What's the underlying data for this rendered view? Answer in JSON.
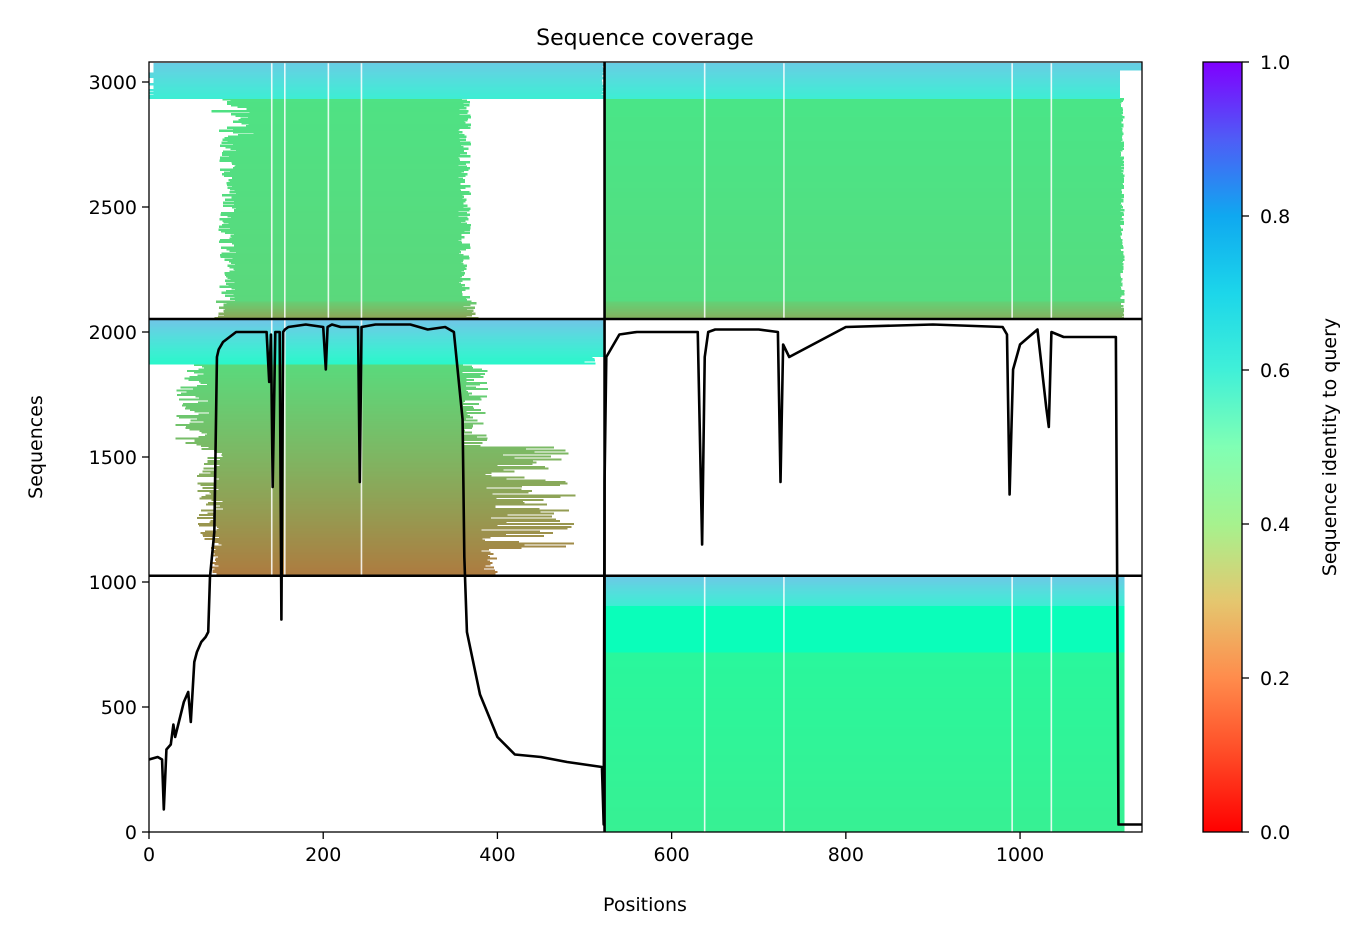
{
  "chart_data": {
    "type": "heatmap",
    "title": "Sequence coverage",
    "xlabel": "Positions",
    "ylabel": "Sequences",
    "xlim": [
      0,
      1140
    ],
    "ylim": [
      0,
      3080
    ],
    "x_ticks": [
      0,
      200,
      400,
      600,
      800,
      1000
    ],
    "y_ticks": [
      0,
      500,
      1000,
      1500,
      2000,
      2500,
      3000
    ],
    "grid": false,
    "domain_boundaries": {
      "x": [
        523
      ],
      "y": [
        1025,
        2052
      ]
    },
    "colorbar": {
      "label": "Sequence identity to query",
      "range": [
        0,
        1
      ],
      "ticks": [
        0.0,
        0.2,
        0.4,
        0.6,
        0.8,
        1.0
      ],
      "tick_labels": [
        "0.0",
        "0.2",
        "0.4",
        "0.6",
        "0.8",
        "1.0"
      ],
      "colormap": "rainbow_r"
    },
    "blocks": [
      {
        "x0": 0,
        "x1": 523,
        "y0": 2052,
        "y1": 3075,
        "pattern": "domain1_top"
      },
      {
        "x0": 523,
        "x1": 1140,
        "y0": 2052,
        "y1": 3075,
        "pattern": "domain2_top"
      },
      {
        "x0": 0,
        "x1": 523,
        "y0": 1025,
        "y1": 2052,
        "pattern": "domain1_mid"
      },
      {
        "x0": 523,
        "x1": 1120,
        "y0": 0,
        "y1": 1025,
        "pattern": "domain2_bottom"
      }
    ],
    "coverage": {
      "color": "#000000",
      "x": [
        0,
        10,
        15,
        17,
        20,
        25,
        28,
        30,
        35,
        40,
        45,
        48,
        52,
        55,
        60,
        65,
        68,
        70,
        75,
        78,
        80,
        85,
        100,
        120,
        135,
        138,
        140,
        142,
        145,
        150,
        152,
        154,
        156,
        160,
        180,
        200,
        203,
        205,
        210,
        220,
        240,
        242,
        244,
        260,
        300,
        320,
        340,
        350,
        360,
        362,
        365,
        380,
        400,
        420,
        450,
        480,
        500,
        520,
        522,
        523,
        525,
        540,
        560,
        600,
        630,
        635,
        638,
        642,
        650,
        700,
        722,
        725,
        728,
        735,
        800,
        900,
        980,
        985,
        988,
        992,
        1000,
        1020,
        1030,
        1033,
        1036,
        1050,
        1100,
        1110,
        1113,
        1116,
        1120,
        1130,
        1140
      ],
      "y": [
        290,
        300,
        290,
        90,
        330,
        350,
        430,
        380,
        450,
        520,
        560,
        440,
        680,
        720,
        760,
        780,
        800,
        1020,
        1200,
        1900,
        1930,
        1960,
        2000,
        2000,
        2000,
        1800,
        1990,
        1380,
        2000,
        2000,
        850,
        2000,
        2010,
        2020,
        2030,
        2020,
        1850,
        2020,
        2030,
        2020,
        2020,
        1400,
        2020,
        2030,
        2030,
        2010,
        2020,
        2000,
        1650,
        1100,
        800,
        550,
        380,
        310,
        300,
        280,
        270,
        260,
        30,
        1400,
        1900,
        1990,
        2000,
        2000,
        2000,
        1150,
        1900,
        2000,
        2010,
        2010,
        2000,
        1400,
        1950,
        1900,
        2020,
        2030,
        2020,
        1990,
        1350,
        1850,
        1950,
        2010,
        1700,
        1620,
        2000,
        1980,
        1980,
        1980,
        30,
        30,
        30,
        30,
        30
      ]
    }
  }
}
